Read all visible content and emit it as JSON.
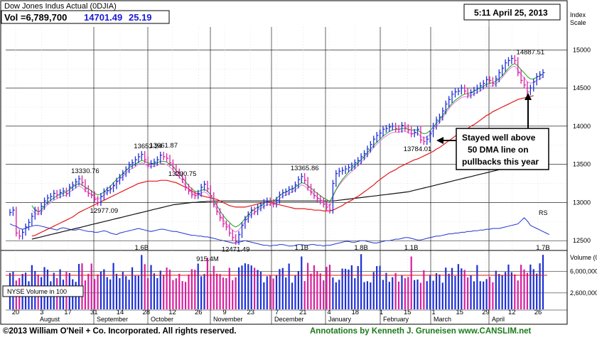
{
  "header": {
    "title": "Dow Jones Indus Actual  (0DJIA)",
    "volume_text": "Vol =6,789,700",
    "price": "14701.49",
    "change": "25.19"
  },
  "date_box": "5:11 April 25, 2013",
  "index_scale_label": [
    "Index",
    "Scale"
  ],
  "volume_scale_label": "Volume (00)",
  "volume_legend": "NYSE Volume in 100",
  "rs_label": "RS",
  "callout": [
    "Stayed well above",
    "50 DMA line on",
    "pullbacks this year"
  ],
  "footer": {
    "copyright": "©2013 William O'Neil + Co. Incorporated. All rights reserved.",
    "annotations": "Annotations by Kenneth J. Gruneisen www.CANSLIM.net"
  },
  "colors": {
    "up": "#1c2fd6",
    "down": "#d81fa0",
    "ma50": "#17a317",
    "ma200": "#e01818",
    "ma_long": "#111111",
    "ma_pink": "#e27ae2",
    "rs": "#2233cc",
    "grid": "#cfcfcf"
  },
  "chart_data": {
    "type": "candlestick",
    "title": "Dow Jones Indus Actual (0DJIA)",
    "ylim": [
      12400,
      15300
    ],
    "yticks": [
      12500,
      13000,
      13500,
      14000,
      14500,
      15000
    ],
    "x_tick_labels": [
      "20",
      "3",
      "17",
      "31",
      "14",
      "28",
      "12",
      "26",
      "9",
      "23",
      "7",
      "21",
      "4",
      "18",
      "1",
      "15",
      "1",
      "15",
      "29",
      "12",
      "26"
    ],
    "months": [
      "August",
      "September",
      "October",
      "November",
      "December",
      "January",
      "February",
      "March",
      "April"
    ],
    "price_labels": [
      {
        "text": "13330.76",
        "value": 13330.76
      },
      {
        "text": "12977.09",
        "value": 12977.09
      },
      {
        "text": "13653.24",
        "value": 13653.24
      },
      {
        "text": "13661.87",
        "value": 13661.87
      },
      {
        "text": "13290.75",
        "value": 13290.75
      },
      {
        "text": "12471.49",
        "value": 12471.49
      },
      {
        "text": "13365.86",
        "value": 13365.86
      },
      {
        "text": "13784.01",
        "value": 13784.01
      },
      {
        "text": "14887.51",
        "value": 14887.51
      }
    ],
    "closes": [
      12870,
      12900,
      12600,
      12560,
      12610,
      12680,
      12740,
      12820,
      12900,
      12880,
      12950,
      13020,
      13060,
      13080,
      13120,
      13100,
      13130,
      13150,
      13120,
      13200,
      13230,
      13270,
      13310,
      13260,
      13180,
      13120,
      13100,
      13040,
      13000,
      13080,
      13140,
      13160,
      13180,
      13220,
      13280,
      13330,
      13380,
      13430,
      13490,
      13520,
      13560,
      13600,
      13630,
      13560,
      13490,
      13510,
      13530,
      13560,
      13620,
      13600,
      13580,
      13520,
      13460,
      13400,
      13360,
      13300,
      13200,
      13150,
      13100,
      13090,
      13120,
      13200,
      13240,
      13180,
      13090,
      12980,
      12880,
      12800,
      12720,
      12680,
      12600,
      12540,
      12490,
      12580,
      12700,
      12780,
      12840,
      12900,
      12880,
      12930,
      12960,
      13000,
      13020,
      13000,
      12980,
      13030,
      13100,
      13130,
      13140,
      13170,
      13180,
      13230,
      13300,
      13340,
      13290,
      13200,
      13140,
      13090,
      13050,
      13020,
      12980,
      12940,
      12900,
      13250,
      13380,
      13410,
      13420,
      13440,
      13460,
      13480,
      13520,
      13550,
      13600,
      13640,
      13700,
      13760,
      13830,
      13880,
      13910,
      13960,
      13970,
      13990,
      14000,
      13970,
      13960,
      14010,
      13980,
      13950,
      13900,
      13920,
      13960,
      13820,
      13800,
      13830,
      13900,
      14000,
      14080,
      14120,
      14200,
      14290,
      14350,
      14420,
      14450,
      14460,
      14500,
      14460,
      14410,
      14440,
      14470,
      14500,
      14530,
      14560,
      14610,
      14600,
      14560,
      14620,
      14700,
      14760,
      14830,
      14860,
      14887,
      14860,
      14700,
      14600,
      14540,
      14450,
      14500,
      14580,
      14650,
      14676,
      14701
    ],
    "ma50": [
      null,
      null,
      null,
      null,
      null,
      null,
      null,
      12960,
      12900,
      12880,
      12900,
      12960,
      13000,
      13030,
      13060,
      13090,
      13110,
      13120,
      13140,
      13170,
      13200,
      13230,
      13250,
      13230,
      13200,
      13180,
      13150,
      13120,
      13100,
      13110,
      13140,
      13180,
      13210,
      13260,
      13300,
      13340,
      13380,
      13420,
      13460,
      13480,
      13500,
      13530,
      13550,
      13540,
      13520,
      13510,
      13510,
      13520,
      13540,
      13540,
      13530,
      13500,
      13470,
      13420,
      13380,
      13330,
      13270,
      13220,
      13180,
      13150,
      13140,
      13160,
      13170,
      13150,
      13100,
      13030,
      12960,
      12890,
      12830,
      12780,
      12740,
      12700,
      12680,
      12700,
      12740,
      12790,
      12840,
      12880,
      12910,
      12940,
      12960,
      12990,
      13010,
      13010,
      13020,
      13050,
      13090,
      13120,
      13140,
      13160,
      13180,
      13200,
      13230,
      13260,
      13250,
      13220,
      13190,
      13150,
      13120,
      13090,
      13060,
      13040,
      13010,
      13090,
      13170,
      13240,
      13300,
      13350,
      13400,
      13440,
      13480,
      13520,
      13560,
      13600,
      13650,
      13700,
      13750,
      13790,
      13830,
      13870,
      13900,
      13930,
      13950,
      13960,
      13960,
      13970,
      13970,
      13960,
      13950,
      13950,
      13950,
      13920,
      13900,
      13910,
      13940,
      13990,
      14040,
      14080,
      14140,
      14200,
      14250,
      14300,
      14340,
      14370,
      14400,
      14420,
      14430,
      14440,
      14460,
      14480,
      14500,
      14520,
      14550,
      14560,
      14570,
      14590,
      14620,
      14660,
      14710,
      14760,
      14800,
      14820,
      14790,
      14740,
      14700,
      14650,
      14620,
      14620,
      14640,
      14660,
      14680
    ],
    "ma200": [
      null,
      null,
      null,
      null,
      null,
      null,
      null,
      12560,
      12570,
      12590,
      12610,
      12630,
      12650,
      12670,
      12690,
      12710,
      12730,
      12750,
      12770,
      12790,
      12810,
      12840,
      12870,
      12890,
      12910,
      12930,
      12950,
      12970,
      12990,
      13010,
      13030,
      13050,
      13070,
      13090,
      13110,
      13130,
      13150,
      13170,
      13190,
      13210,
      13230,
      13250,
      13260,
      13270,
      13280,
      13280,
      13280,
      13280,
      13290,
      13290,
      13290,
      13280,
      13270,
      13260,
      13240,
      13220,
      13200,
      13180,
      13150,
      13130,
      13110,
      13090,
      13080,
      13070,
      13060,
      13050,
      13040,
      13020,
      13000,
      12980,
      12960,
      12950,
      12940,
      12940,
      12940,
      12940,
      12950,
      12960,
      12970,
      12980,
      12990,
      13000,
      13000,
      13000,
      12990,
      12980,
      12970,
      12960,
      12950,
      12940,
      12930,
      12920,
      12920,
      12920,
      12920,
      12910,
      12910,
      12900,
      12900,
      12900,
      12890,
      12890,
      12890,
      12900,
      12920,
      12940,
      12960,
      12990,
      13010,
      13030,
      13060,
      13080,
      13110,
      13140,
      13170,
      13200,
      13230,
      13270,
      13300,
      13330,
      13360,
      13390,
      13410,
      13430,
      13460,
      13480,
      13500,
      13520,
      13540,
      13560,
      13570,
      13590,
      13610,
      13630,
      13650,
      13670,
      13700,
      13720,
      13750,
      13780,
      13810,
      13840,
      13870,
      13900,
      13920,
      13950,
      13970,
      14000,
      14020,
      14050,
      14080,
      14110,
      14140,
      14160,
      14190,
      14210,
      14230,
      14250,
      14270,
      14290,
      14310,
      14330,
      14350,
      14360,
      14370,
      14380,
      14390,
      14400
    ],
    "ma_long": [
      null,
      null,
      null,
      null,
      null,
      null,
      null,
      12520,
      12530,
      12540,
      12550,
      12560,
      12570,
      12580,
      12590,
      12600,
      12610,
      12620,
      12630,
      12640,
      12650,
      12660,
      12670,
      12680,
      12690,
      12700,
      12710,
      12720,
      12730,
      12740,
      12750,
      12760,
      12770,
      12780,
      12790,
      12800,
      12810,
      12820,
      12830,
      12840,
      12850,
      12860,
      12870,
      12880,
      12890,
      12900,
      12910,
      12920,
      12930,
      12940,
      12950,
      12960,
      12970,
      12975,
      12980,
      12985,
      12990,
      12995,
      13000,
      13000,
      13005,
      13010,
      13010,
      13015,
      13015,
      13020,
      13020,
      13020,
      13020,
      13020,
      13020,
      13020,
      13020,
      13020,
      13020,
      13020,
      13020,
      13020,
      13020,
      13020,
      13020,
      13020,
      13020,
      13020,
      13020,
      13020,
      13020,
      13020,
      13020,
      13020,
      13020,
      13020,
      13020,
      13020,
      13020,
      13020,
      13020,
      13020,
      13020,
      13020,
      13020,
      13020,
      13020,
      13020,
      13025,
      13030,
      13035,
      13040,
      13045,
      13050,
      13055,
      13060,
      13065,
      13070,
      13075,
      13080,
      13085,
      13090,
      13095,
      13100,
      13105,
      13110,
      13115,
      13120,
      13125,
      13130,
      13135,
      13140,
      13150,
      13160,
      13170,
      13180,
      13190,
      13200,
      13210,
      13220,
      13230,
      13240,
      13250,
      13260,
      13270,
      13280,
      13290,
      13300,
      13310,
      13320,
      13330,
      13340,
      13350,
      13360,
      13370,
      13380,
      13390,
      13400,
      13410,
      13420,
      13430,
      13440,
      13450,
      13460,
      13470,
      13480,
      13490,
      13500,
      13510,
      13520,
      13530,
      13540,
      13550,
      13560,
      13570
    ],
    "rs": [
      12720,
      12700,
      12690,
      12660,
      12650,
      12660,
      12680,
      12690,
      12700,
      12700,
      12690,
      12680,
      12670,
      12660,
      12650,
      12640,
      12660,
      12670,
      12660,
      12650,
      12640,
      12640,
      12650,
      12640,
      12630,
      12620,
      12620,
      12610,
      12610,
      12620,
      12630,
      12620,
      12600,
      12590,
      12580,
      12600,
      12610,
      12620,
      12630,
      12640,
      12650,
      12660,
      12650,
      12640,
      12630,
      12620,
      12630,
      12640,
      12650,
      12650,
      12640,
      12630,
      12620,
      12620,
      12610,
      12600,
      12590,
      12580,
      12570,
      12570,
      12560,
      12560,
      12550,
      12550,
      12540,
      12530,
      12520,
      12510,
      12500,
      12490,
      12480,
      12470,
      12470,
      12480,
      12490,
      12500,
      12490,
      12480,
      12470,
      12460,
      12450,
      12440,
      12440,
      12430,
      12440,
      12440,
      12450,
      12450,
      12440,
      12430,
      12430,
      12440,
      12450,
      12450,
      12440,
      12440,
      12450,
      12450,
      12440,
      12440,
      12430,
      12440,
      12440,
      12450,
      12460,
      12470,
      12480,
      12490,
      12490,
      12480,
      12480,
      12490,
      12500,
      12500,
      12490,
      12480,
      12470,
      12470,
      12480,
      12490,
      12500,
      12500,
      12510,
      12520,
      12520,
      12530,
      12540,
      12540,
      12530,
      12520,
      12510,
      12510,
      12520,
      12530,
      12540,
      12550,
      12560,
      12560,
      12570,
      12580,
      12590,
      12590,
      12600,
      12600,
      12610,
      12610,
      12620,
      12620,
      12630,
      12630,
      12640,
      12640,
      12650,
      12650,
      12660,
      12660,
      12660,
      12670,
      12680,
      12690,
      12700,
      12710,
      12720,
      12760,
      12800,
      12760,
      12700,
      12680,
      12660,
      12640,
      12620,
      12600,
      12580
    ],
    "volume_labels": [
      {
        "text": "1.6B"
      },
      {
        "text": "915.4M"
      },
      {
        "text": "1.1B"
      },
      {
        "text": "1.8B"
      },
      {
        "text": "1.1B"
      },
      {
        "text": "1.7B"
      }
    ],
    "volume_ylim": [
      0,
      9000000
    ],
    "volume_yticks": [
      {
        "text": "6,000,000",
        "value": 6000000
      },
      {
        "text": "2,600,000",
        "value": 2600000
      }
    ],
    "volume_avg": 5400000
  }
}
